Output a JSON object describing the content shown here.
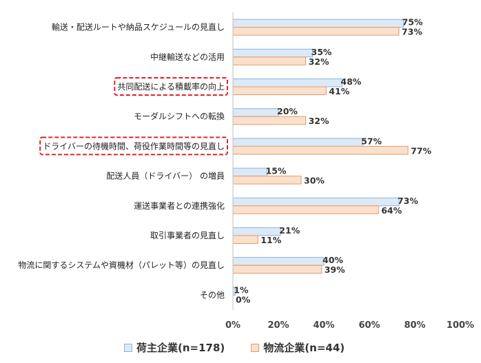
{
  "chart_data": {
    "type": "bar",
    "orientation": "horizontal",
    "categories": [
      "輸送・配送ルートや納品スケジュールの見直し",
      "中継輸送などの活用",
      "共同配送による積載率の向上",
      "モーダルシフトへの転換",
      "ドライバーの待機時間、荷役作業時間等の見直し",
      "配送人員（ドライバー） の増員",
      "運送事業者との連携強化",
      "取引事業者の見直し",
      "物流に関するシステムや資機材（パレット等）の見直し",
      "その他"
    ],
    "highlighted_categories": [
      "共同配送による積載率の向上",
      "ドライバーの待機時間、荷役作業時間等の見直し"
    ],
    "series": [
      {
        "name": "荷主企業(n=178)",
        "values": [
          75,
          35,
          48,
          20,
          57,
          15,
          73,
          21,
          40,
          1
        ]
      },
      {
        "name": "物流企業(n=44)",
        "values": [
          73,
          32,
          41,
          32,
          77,
          30,
          64,
          11,
          39,
          0
        ]
      }
    ],
    "value_labels": [
      [
        "75%",
        "35%",
        "48%",
        "20%",
        "57%",
        "15%",
        "73%",
        "21%",
        "40%",
        "1%"
      ],
      [
        "73%",
        "32%",
        "41%",
        "32%",
        "77%",
        "30%",
        "64%",
        "11%",
        "39%",
        "0%"
      ]
    ],
    "xlim": [
      0,
      100
    ],
    "xticks": [
      "0%",
      "20%",
      "40%",
      "60%",
      "80%",
      "100%"
    ],
    "colors": {
      "series1_fill": "#dce9f6",
      "series1_border": "#8fb4d9",
      "series2_fill": "#fbe0cc",
      "series2_border": "#e39a6a",
      "highlight_border": "#e0202a"
    },
    "legend_position": "bottom",
    "grid": false,
    "title": "",
    "xlabel": "",
    "ylabel": ""
  }
}
